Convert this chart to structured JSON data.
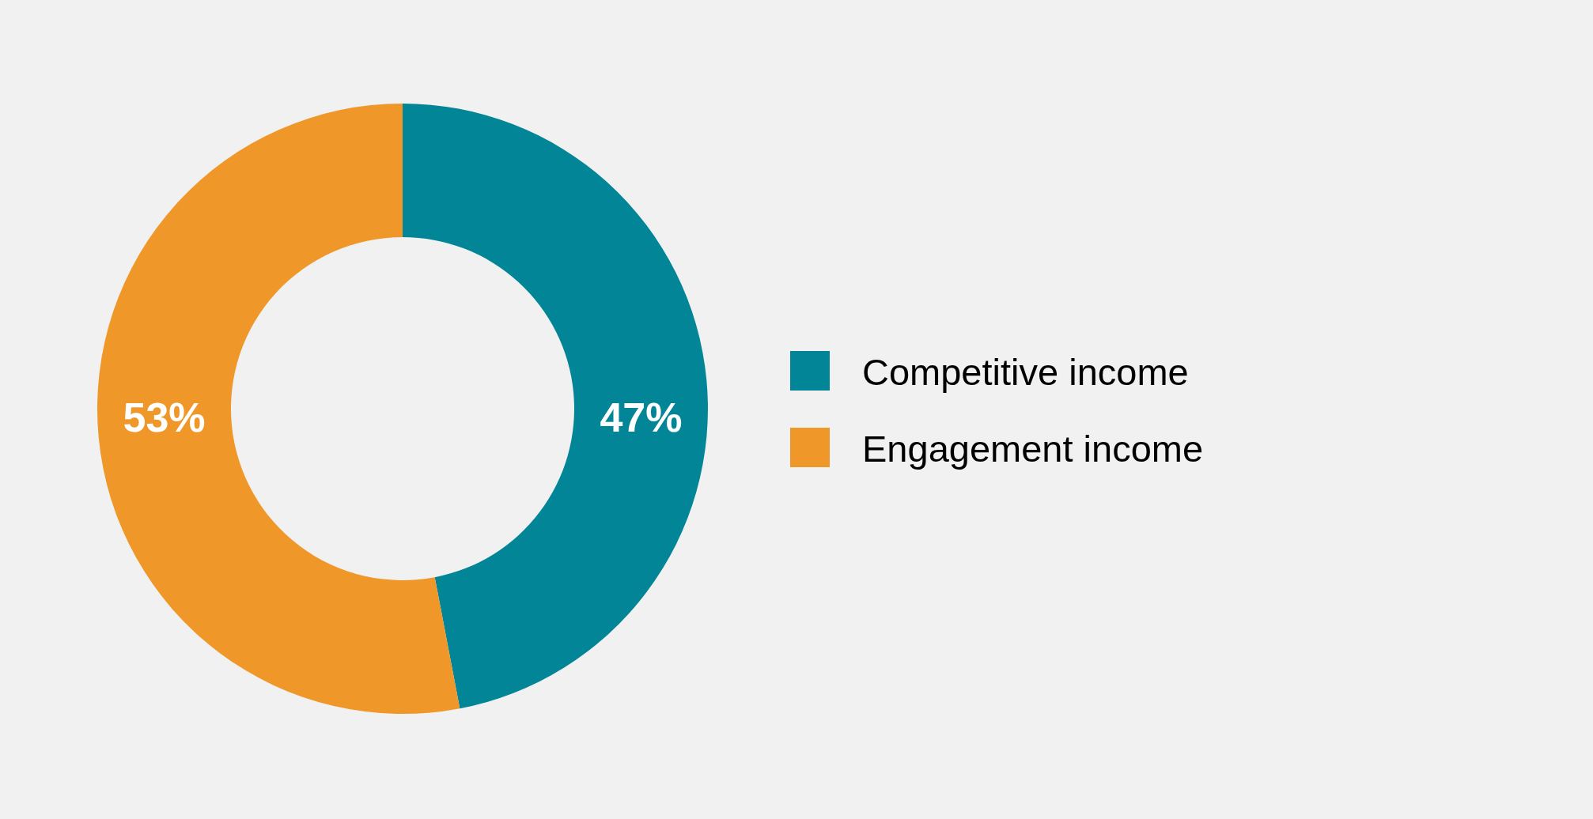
{
  "chart_data": {
    "type": "donut",
    "categories": [
      "Competitive income",
      "Engagement income"
    ],
    "values": [
      47,
      53
    ],
    "colors": [
      "#028597",
      "#ef9829"
    ],
    "value_labels": [
      "47%",
      "53%"
    ],
    "legend": "right"
  }
}
